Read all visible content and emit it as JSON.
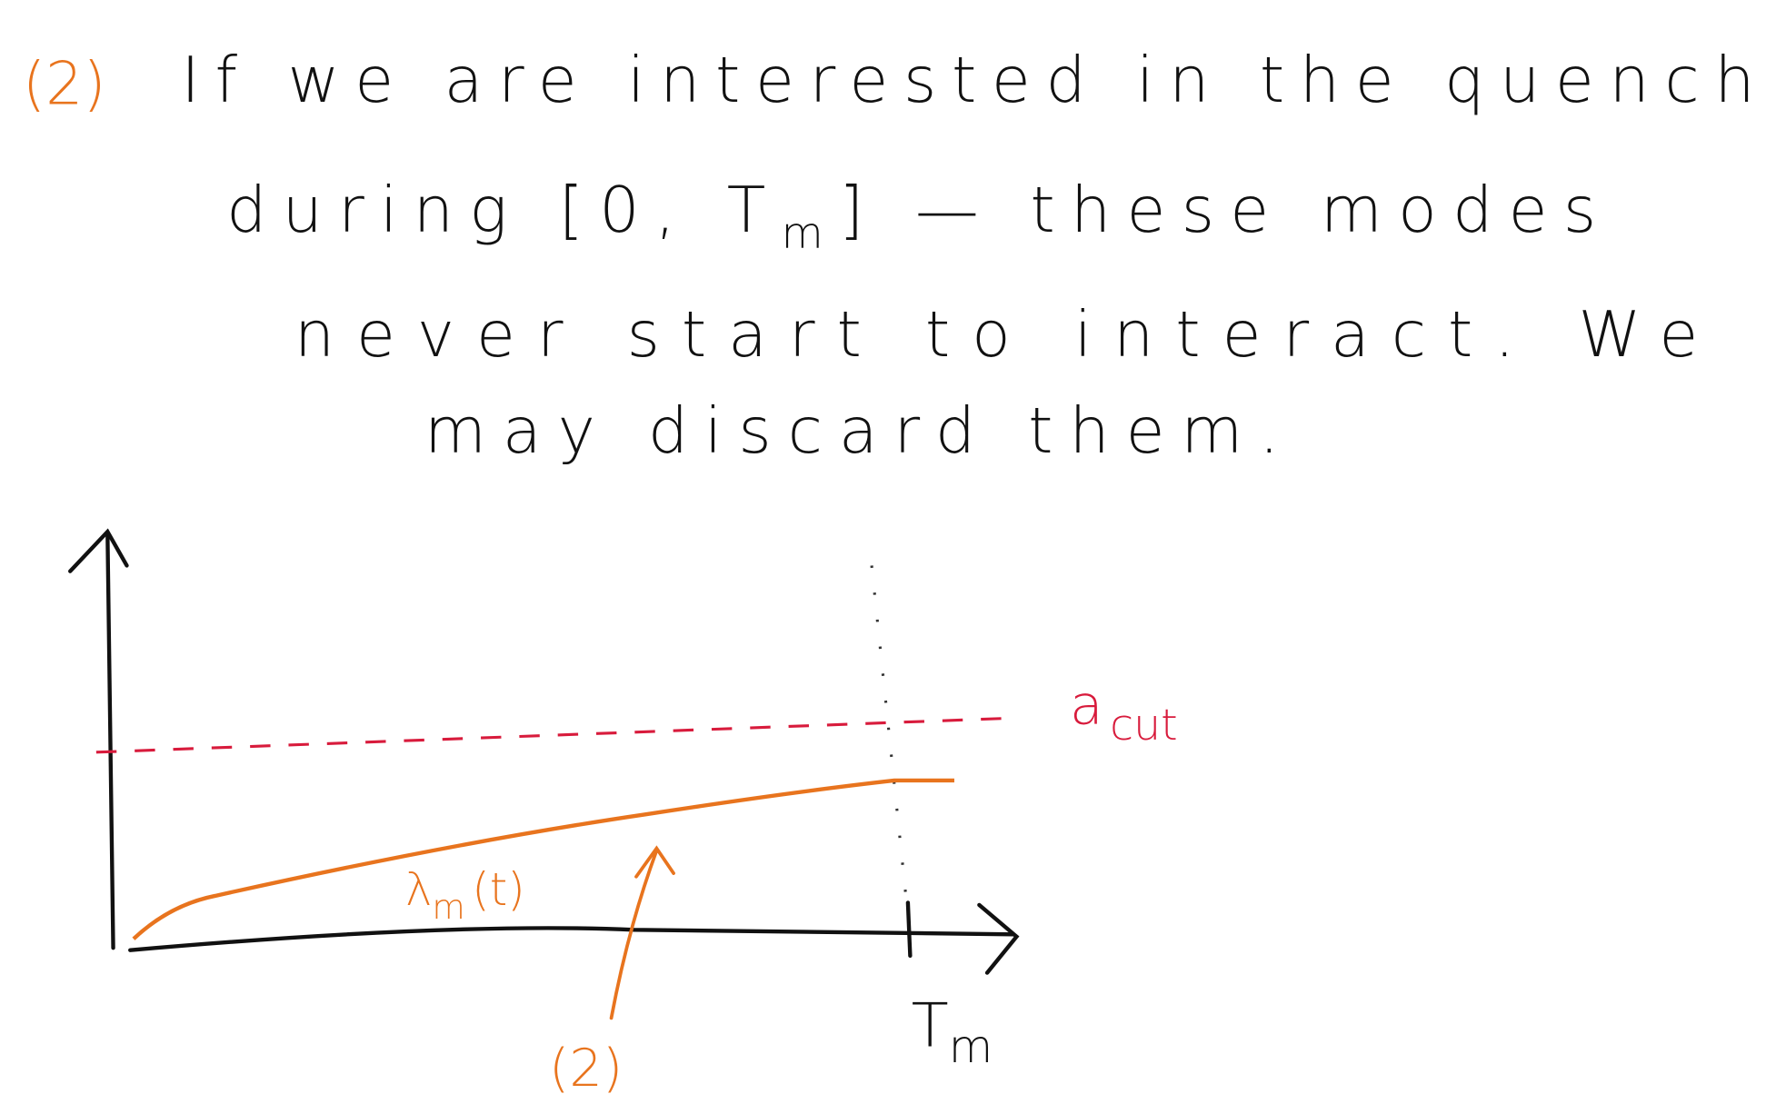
{
  "note": {
    "marker": "(2)",
    "line1": "If we are interested in the quench",
    "line2": [
      "during [0, T",
      "m",
      "] — these modes"
    ],
    "line3": "never start to interact. We",
    "line4": "may discard them."
  },
  "sketch": {
    "threshold_label": [
      "a",
      "cut"
    ],
    "curve_label": [
      "λ",
      "m",
      "(t)"
    ],
    "time_label": [
      "T",
      "m"
    ],
    "arrow_label": "(2)"
  }
}
